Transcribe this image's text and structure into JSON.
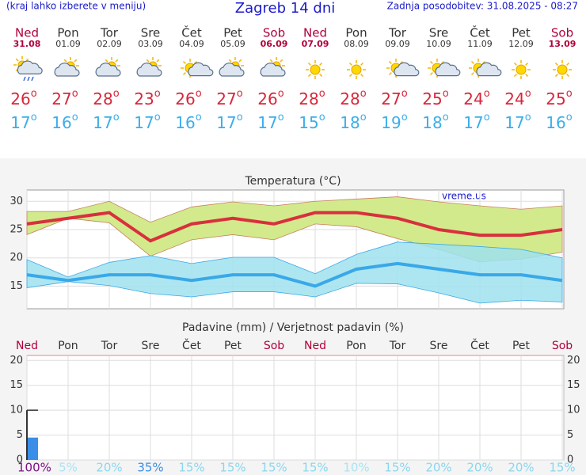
{
  "header": {
    "left": "(kraj lahko izberete v meniju)",
    "title": "Zagreb 14 dni",
    "right": "Zadnja posodobitev: 31.08.2025 - 08:27"
  },
  "days": {
    "names": [
      "Ned",
      "Pon",
      "Tor",
      "Sre",
      "Čet",
      "Pet",
      "Sob",
      "Ned",
      "Pon",
      "Tor",
      "Sre",
      "Čet",
      "Pet",
      "Sob"
    ],
    "dates": [
      "31.08",
      "01.09",
      "02.09",
      "03.09",
      "04.09",
      "05.09",
      "06.09",
      "07.09",
      "08.09",
      "09.09",
      "10.09",
      "11.09",
      "12.09",
      "13.09"
    ],
    "weekend": [
      true,
      false,
      false,
      false,
      false,
      false,
      true,
      true,
      false,
      false,
      false,
      false,
      false,
      true
    ],
    "icons": [
      "rain",
      "cloud",
      "cloud",
      "cloud",
      "partly",
      "cloud",
      "cloud",
      "sun",
      "sun",
      "partly",
      "partly",
      "partly",
      "sun",
      "sun"
    ],
    "high": [
      26,
      27,
      28,
      23,
      26,
      27,
      26,
      28,
      28,
      27,
      25,
      24,
      24,
      25
    ],
    "low": [
      17,
      16,
      17,
      17,
      16,
      17,
      17,
      15,
      18,
      19,
      18,
      17,
      17,
      16
    ],
    "degree": "o",
    "high_color": "#d8263a",
    "low_color": "#3aaeea",
    "weekend_color": "#b0003a"
  },
  "chart_data": [
    {
      "type": "line",
      "title": "Temperatura (°C)",
      "watermark": "vreme.us",
      "ylim": [
        11,
        32
      ],
      "yticks": [
        15,
        20,
        25,
        30
      ],
      "grid": true,
      "series": [
        {
          "color": "#d8303d",
          "values": [
            26,
            27,
            28,
            23,
            26,
            27,
            26,
            28,
            28,
            27,
            25,
            24,
            24,
            25
          ]
        },
        {
          "color": "#3aa8e8",
          "values": [
            17,
            16,
            17,
            17,
            16,
            17,
            17,
            15,
            18,
            19,
            18,
            17,
            17,
            16
          ]
        }
      ],
      "bands": [
        {
          "color": "#d2ea8c",
          "upper": [
            28.2,
            28.2,
            30,
            26.3,
            29,
            29.9,
            29.2,
            30,
            30.4,
            30.8,
            29.9,
            29.2,
            28.6,
            29.2
          ],
          "lower": [
            24.1,
            27,
            26.2,
            20.3,
            23.2,
            24.1,
            23.2,
            26,
            25.5,
            23.4,
            21.5,
            19.3,
            19.8,
            21
          ]
        },
        {
          "color": "#9fe2ee",
          "upper": [
            19.7,
            16.6,
            19.2,
            20.4,
            19,
            20.1,
            20.1,
            17.2,
            20.6,
            22.8,
            22.4,
            22,
            21.5,
            20
          ],
          "lower": [
            14.7,
            15.8,
            15.1,
            13.7,
            13.1,
            14,
            14,
            13.1,
            15.5,
            15.4,
            13.8,
            12,
            12.5,
            12.2
          ]
        }
      ]
    },
    {
      "type": "bar",
      "title": "Padavine (mm) / Verjetnost padavin (%)",
      "ylim": [
        0,
        21
      ],
      "yticks": [
        0,
        5,
        10,
        15,
        20
      ],
      "color": "#3a8ee8",
      "values": [
        4.5,
        0,
        0,
        0,
        0,
        0,
        0,
        0,
        0,
        0,
        0,
        0,
        0,
        0
      ],
      "upper": [
        10,
        null,
        null,
        null,
        null,
        null,
        null,
        null,
        null,
        null,
        null,
        null,
        null,
        null
      ],
      "probabilities": [
        100,
        5,
        20,
        35,
        15,
        15,
        15,
        15,
        10,
        15,
        20,
        20,
        20,
        15
      ],
      "probability_labels": [
        "100%",
        "5%",
        "20%",
        "35%",
        "15%",
        "15%",
        "15%",
        "15%",
        "10%",
        "15%",
        "20%",
        "20%",
        "20%",
        "15%"
      ],
      "probability_colors": [
        "#80108a",
        "#a8e4f4",
        "#88d8f0",
        "#3a8ee8",
        "#88d8f0",
        "#88d8f0",
        "#88d8f0",
        "#88d8f0",
        "#a8e4f4",
        "#88d8f0",
        "#88d8f0",
        "#88d8f0",
        "#88d8f0",
        "#88d8f0"
      ]
    }
  ]
}
